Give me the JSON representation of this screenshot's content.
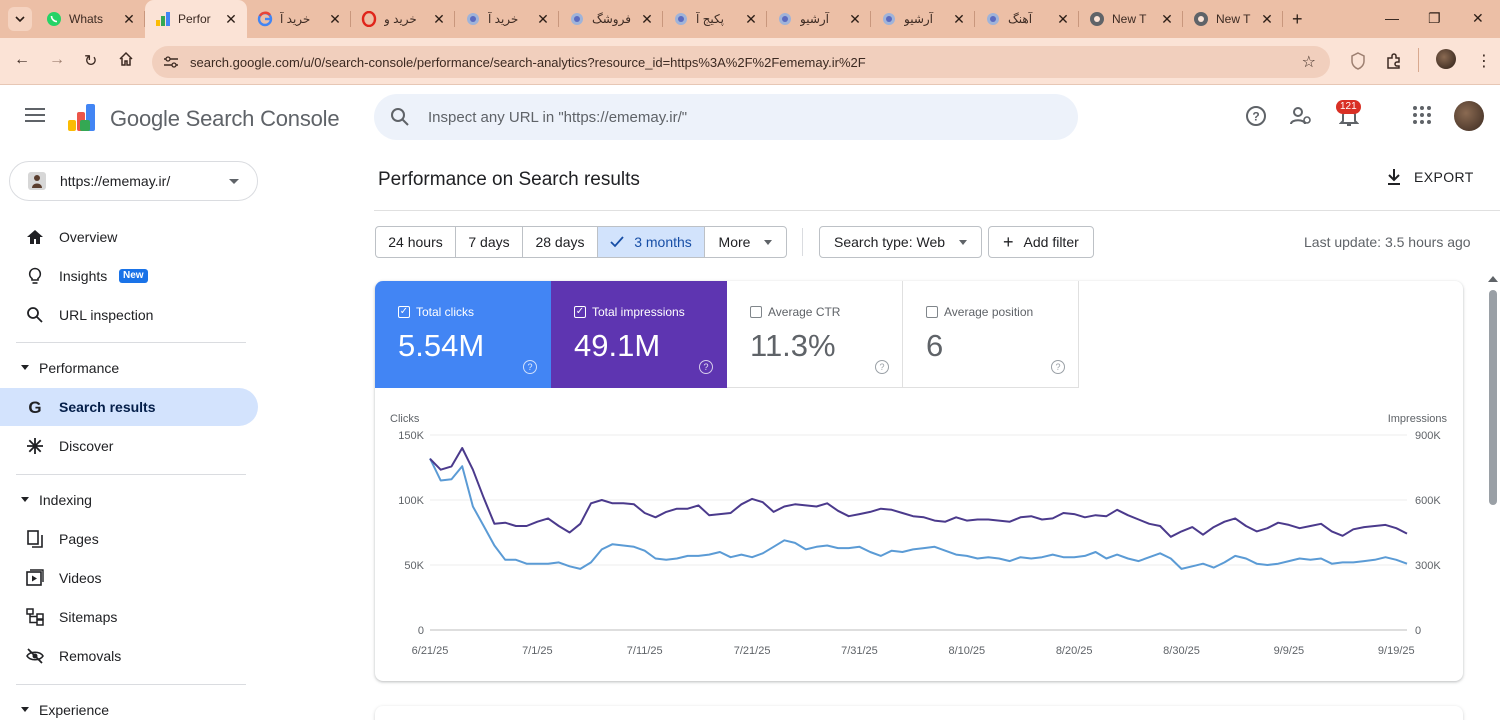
{
  "browser": {
    "tabs": [
      {
        "title": "Whats",
        "icon": "whatsapp-icon"
      },
      {
        "title": "Perfor",
        "icon": "search-console-icon",
        "active": true
      },
      {
        "title": "خرید آ",
        "icon": "google-icon"
      },
      {
        "title": "خرید و",
        "icon": "opera-icon"
      },
      {
        "title": "خرید آ",
        "icon": "site-icon"
      },
      {
        "title": "فروشگ",
        "icon": "site-icon"
      },
      {
        "title": "پکیج آ",
        "icon": "site-icon"
      },
      {
        "title": "آرشیو",
        "icon": "site-icon"
      },
      {
        "title": "آرشیو",
        "icon": "site-icon"
      },
      {
        "title": "آهنگ",
        "icon": "site-icon"
      },
      {
        "title": "New T",
        "icon": "chrome-icon"
      },
      {
        "title": "New T",
        "icon": "chrome-icon"
      }
    ],
    "address": "search.google.com/u/0/search-console/performance/search-analytics?resource_id=https%3A%2F%2Fememay.ir%2F"
  },
  "header": {
    "brand": "Google Search Console",
    "search_placeholder": "Inspect any URL in \"https://ememay.ir/\"",
    "notifications": "121"
  },
  "sidebar": {
    "property": "https://ememay.ir/",
    "items_top": [
      {
        "label": "Overview",
        "icon": "home-icon"
      },
      {
        "label": "Insights",
        "icon": "lightbulb-icon",
        "badge": "New"
      },
      {
        "label": "URL inspection",
        "icon": "search-icon"
      }
    ],
    "performance": {
      "title": "Performance",
      "items": [
        {
          "label": "Search results",
          "icon": "google-g-icon",
          "active": true
        },
        {
          "label": "Discover",
          "icon": "asterisk-icon"
        }
      ]
    },
    "indexing": {
      "title": "Indexing",
      "items": [
        {
          "label": "Pages",
          "icon": "pages-icon"
        },
        {
          "label": "Videos",
          "icon": "videos-icon"
        },
        {
          "label": "Sitemaps",
          "icon": "sitemaps-icon"
        },
        {
          "label": "Removals",
          "icon": "removals-icon"
        }
      ]
    },
    "experience": {
      "title": "Experience"
    }
  },
  "main": {
    "title": "Performance on Search results",
    "export": "EXPORT",
    "date_ranges": [
      "24 hours",
      "7 days",
      "28 days",
      "3 months",
      "More"
    ],
    "selected_range": "3 months",
    "search_type": "Search type: Web",
    "add_filter": "Add filter",
    "last_update": "Last update: 3.5 hours ago",
    "metrics": [
      {
        "label": "Total clicks",
        "value": "5.54M",
        "checked": true,
        "color": "#4285f4"
      },
      {
        "label": "Total impressions",
        "value": "49.1M",
        "checked": true,
        "color": "#5e35b1"
      },
      {
        "label": "Average CTR",
        "value": "11.3%",
        "checked": false
      },
      {
        "label": "Average position",
        "value": "6",
        "checked": false
      }
    ]
  },
  "colors": {
    "clicks": "#4285f4",
    "impressions": "#5e35b1",
    "clicks_line": "#5b9bd5",
    "impressions_line": "#4b3a8c"
  },
  "chart_data": {
    "type": "line",
    "ylabel_left": "Clicks",
    "ylabel_right": "Impressions",
    "y_left_ticks": [
      "150K",
      "100K",
      "50K",
      "0"
    ],
    "y_right_ticks": [
      "900K",
      "600K",
      "300K",
      "0"
    ],
    "ylim_left": [
      0,
      150000
    ],
    "ylim_right": [
      0,
      900000
    ],
    "x_ticks": [
      "6/21/25",
      "7/1/25",
      "7/11/25",
      "7/21/25",
      "7/31/25",
      "8/10/25",
      "8/20/25",
      "8/30/25",
      "9/9/25",
      "9/19/25"
    ],
    "start_date": "2025-06-21",
    "grid": true,
    "series": [
      {
        "name": "Clicks",
        "axis": "left",
        "values": [
          132000,
          115000,
          116000,
          126000,
          95000,
          80000,
          65000,
          54000,
          54000,
          51000,
          51000,
          51000,
          52000,
          49000,
          47000,
          52000,
          62000,
          66000,
          65000,
          64000,
          61000,
          55000,
          54000,
          55000,
          57000,
          57000,
          58000,
          60000,
          56000,
          58000,
          56000,
          59000,
          64000,
          69000,
          67000,
          62000,
          64000,
          65000,
          63000,
          63000,
          64000,
          60000,
          57000,
          61000,
          60000,
          62000,
          63000,
          64000,
          61000,
          58000,
          57000,
          55000,
          56000,
          55000,
          53000,
          56000,
          55000,
          56000,
          58000,
          56000,
          56000,
          57000,
          60000,
          55000,
          58000,
          55000,
          53000,
          56000,
          59000,
          55000,
          47000,
          49000,
          51000,
          48000,
          52000,
          57000,
          55000,
          51000,
          50000,
          51000,
          53000,
          55000,
          54000,
          55000,
          51000,
          52000,
          52000,
          53000,
          54000,
          56000,
          54000,
          51000
        ]
      },
      {
        "name": "Impressions",
        "axis": "right",
        "values": [
          790000,
          740000,
          755000,
          840000,
          740000,
          610000,
          490000,
          495000,
          480000,
          480000,
          500000,
          515000,
          480000,
          450000,
          490000,
          585000,
          600000,
          585000,
          585000,
          580000,
          540000,
          520000,
          545000,
          560000,
          560000,
          575000,
          530000,
          535000,
          540000,
          580000,
          605000,
          590000,
          545000,
          570000,
          580000,
          575000,
          570000,
          585000,
          550000,
          525000,
          535000,
          545000,
          560000,
          555000,
          540000,
          525000,
          520000,
          505000,
          500000,
          520000,
          505000,
          510000,
          510000,
          505000,
          500000,
          520000,
          525000,
          510000,
          515000,
          540000,
          535000,
          520000,
          530000,
          525000,
          555000,
          530000,
          510000,
          490000,
          480000,
          430000,
          455000,
          475000,
          440000,
          475000,
          500000,
          515000,
          480000,
          455000,
          470000,
          495000,
          485000,
          470000,
          480000,
          490000,
          455000,
          435000,
          465000,
          475000,
          480000,
          485000,
          470000,
          445000
        ]
      }
    ]
  }
}
